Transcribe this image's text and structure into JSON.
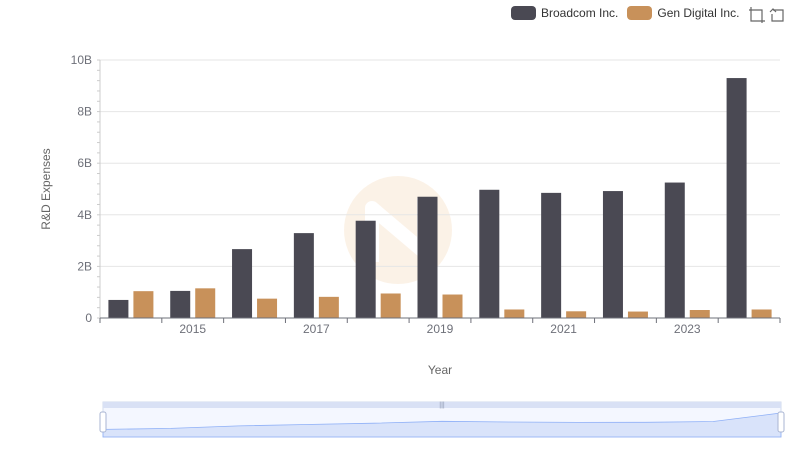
{
  "chart_data": {
    "type": "bar",
    "title": "",
    "xlabel": "Year",
    "ylabel": "R&D Expenses",
    "categories": [
      "2014",
      "2015",
      "2016",
      "2017",
      "2018",
      "2019",
      "2020",
      "2021",
      "2022",
      "2023",
      "2024"
    ],
    "x_tick_labels": [
      "2015",
      "2017",
      "2019",
      "2021",
      "2023"
    ],
    "y_tick_labels": [
      "0",
      "2B",
      "4B",
      "6B",
      "8B",
      "10B"
    ],
    "ylim": [
      0,
      10000000000
    ],
    "grid": true,
    "legend_position": "top-right",
    "series": [
      {
        "name": "Broadcom Inc.",
        "color": "#4a4953",
        "values": [
          700000000,
          1050000000,
          2670000000,
          3290000000,
          3770000000,
          4700000000,
          4970000000,
          4850000000,
          4920000000,
          5250000000,
          9300000000
        ]
      },
      {
        "name": "Gen Digital Inc.",
        "color": "#c8915a",
        "values": [
          1040000000,
          1150000000,
          750000000,
          820000000,
          950000000,
          910000000,
          330000000,
          260000000,
          250000000,
          310000000,
          330000000
        ]
      }
    ]
  },
  "toolbox": {
    "zoom_icon": "zoom-icon",
    "reset_icon": "restore-icon"
  }
}
